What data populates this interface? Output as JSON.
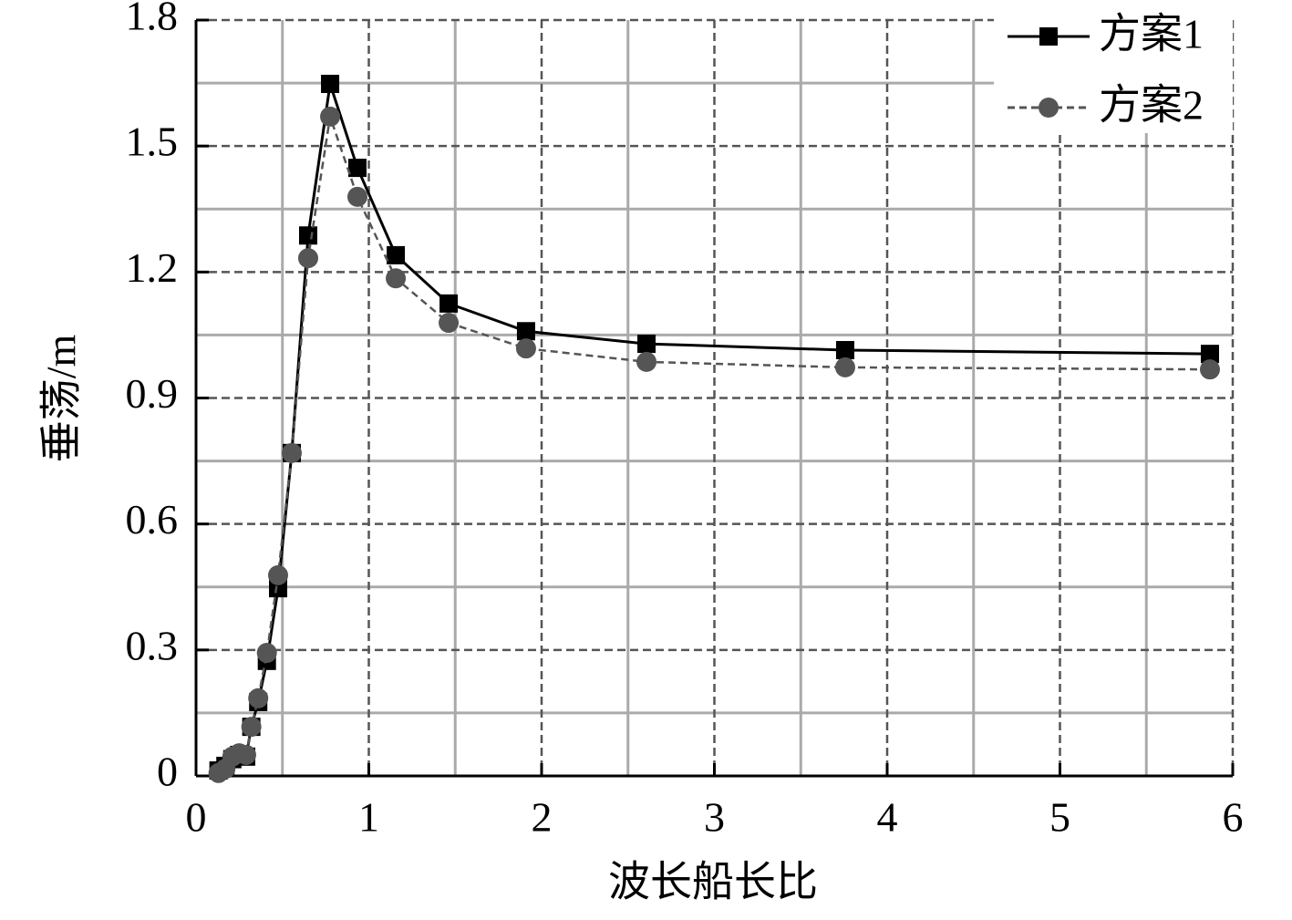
{
  "chart_data": {
    "type": "line",
    "x_label": "波长船长比",
    "y_label": "垂荡/m",
    "x": [
      0.13,
      0.17,
      0.21,
      0.25,
      0.29,
      0.32,
      0.36,
      0.41,
      0.475,
      0.554,
      0.649,
      0.776,
      0.934,
      1.156,
      1.462,
      1.91,
      2.607,
      3.757,
      5.868
    ],
    "series": [
      {
        "name": "方案1",
        "color": "#000000",
        "marker": "square",
        "dash": false,
        "values": [
          0.013,
          0.024,
          0.04,
          0.05,
          0.046,
          0.117,
          0.176,
          0.274,
          0.447,
          0.769,
          1.287,
          1.648,
          1.448,
          1.24,
          1.125,
          1.059,
          1.029,
          1.014,
          1.005
        ]
      },
      {
        "name": "方案2",
        "color": "#555555",
        "marker": "circle",
        "dash": true,
        "values": [
          0.007,
          0.017,
          0.046,
          0.054,
          0.05,
          0.117,
          0.185,
          0.293,
          0.478,
          0.769,
          1.233,
          1.57,
          1.379,
          1.185,
          1.079,
          1.018,
          0.986,
          0.973,
          0.968
        ]
      }
    ],
    "xlim": [
      0,
      6
    ],
    "ylim": [
      0,
      1.8
    ],
    "xticks": [
      0,
      1,
      2,
      3,
      4,
      5,
      6
    ],
    "yticks": [
      0,
      0.3,
      0.6,
      0.9,
      1.2,
      1.5,
      1.8
    ],
    "xminorticks": [
      0.5,
      1.5,
      2.5,
      3.5,
      4.5,
      5.5
    ],
    "yminorticks": [
      0.15,
      0.45,
      0.75,
      1.05,
      1.35,
      1.65
    ],
    "grid": true,
    "legend": "upper right"
  }
}
